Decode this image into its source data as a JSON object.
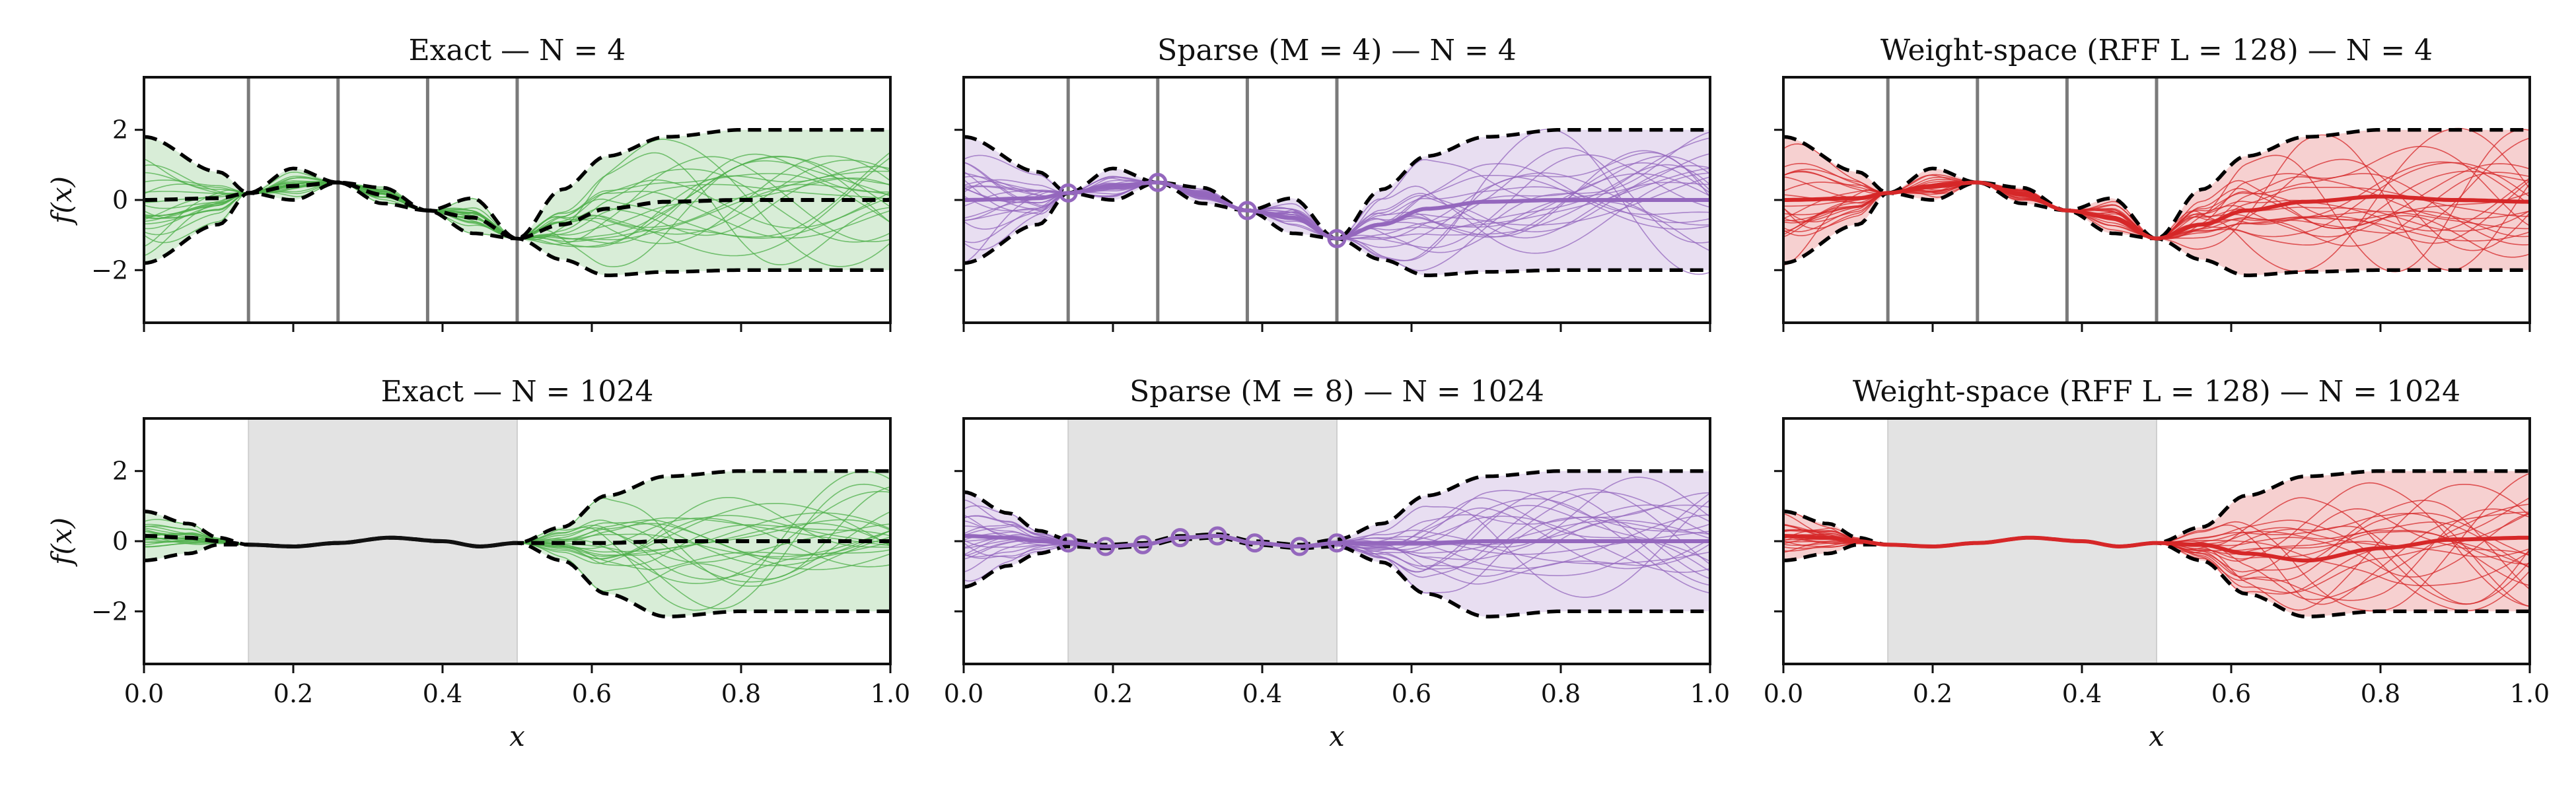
{
  "chart_data": [
    {
      "type": "line",
      "title": "Exact — N = 4",
      "xlabel": "",
      "ylabel": "f(x)",
      "xlim": [
        0,
        1
      ],
      "ylim": [
        -3.5,
        3.5
      ],
      "xticks": [
        "",
        "",
        "",
        "",
        "",
        ""
      ],
      "yticks": [
        "2",
        "0",
        "−2"
      ],
      "color": "#4daf4a",
      "mode": "points",
      "inducing_x": [],
      "observed_x": [
        0.14,
        0.26,
        0.38,
        0.5
      ],
      "observed_y": [
        0.2,
        0.5,
        -0.3,
        -1.1
      ],
      "shaded_region": null,
      "mean_style": "dashed",
      "mean_x": [
        0,
        0.1,
        0.14,
        0.2,
        0.26,
        0.32,
        0.38,
        0.44,
        0.5,
        0.56,
        0.62,
        0.7,
        0.8,
        0.9,
        1.0
      ],
      "mean_y": [
        0.0,
        0.05,
        0.2,
        0.4,
        0.5,
        0.15,
        -0.3,
        -0.5,
        -1.1,
        -0.7,
        -0.25,
        -0.05,
        0.0,
        0.0,
        0.0
      ],
      "upper_y": [
        1.8,
        0.8,
        0.2,
        0.9,
        0.5,
        0.35,
        -0.3,
        0.05,
        -1.1,
        0.3,
        1.25,
        1.8,
        2.0,
        2.0,
        2.0
      ],
      "lower_y": [
        -1.8,
        -0.7,
        0.2,
        0.0,
        0.5,
        -0.1,
        -0.3,
        -0.95,
        -1.1,
        -1.7,
        -2.15,
        -2.05,
        -2.0,
        -2.0,
        -2.0
      ]
    },
    {
      "type": "line",
      "title": "Sparse (M = 4) — N = 4",
      "xlabel": "",
      "ylabel": "",
      "xlim": [
        0,
        1
      ],
      "ylim": [
        -3.5,
        3.5
      ],
      "xticks": [
        "",
        "",
        "",
        "",
        "",
        ""
      ],
      "yticks": [
        "",
        "",
        ""
      ],
      "color": "#9467bd",
      "mode": "points",
      "inducing_x": [
        0.14,
        0.26,
        0.38,
        0.5
      ],
      "observed_x": [
        0.14,
        0.26,
        0.38,
        0.5
      ],
      "observed_y": [
        0.2,
        0.5,
        -0.3,
        -1.1
      ],
      "shaded_region": null,
      "mean_style": "solid",
      "mean_x": [
        0,
        0.1,
        0.14,
        0.2,
        0.26,
        0.32,
        0.38,
        0.44,
        0.5,
        0.56,
        0.62,
        0.7,
        0.8,
        0.9,
        1.0
      ],
      "mean_y": [
        0.0,
        0.05,
        0.2,
        0.4,
        0.5,
        0.15,
        -0.3,
        -0.5,
        -1.1,
        -0.7,
        -0.25,
        -0.05,
        0.0,
        0.0,
        0.0
      ],
      "upper_y": [
        1.8,
        0.8,
        0.2,
        0.9,
        0.5,
        0.35,
        -0.3,
        0.05,
        -1.1,
        0.3,
        1.25,
        1.8,
        2.0,
        2.0,
        2.0
      ],
      "lower_y": [
        -1.8,
        -0.7,
        0.2,
        0.0,
        0.5,
        -0.1,
        -0.3,
        -0.95,
        -1.1,
        -1.7,
        -2.15,
        -2.05,
        -2.0,
        -2.0,
        -2.0
      ]
    },
    {
      "type": "line",
      "title": "Weight-space (RFF L = 128) — N = 4",
      "xlabel": "",
      "ylabel": "",
      "xlim": [
        0,
        1
      ],
      "ylim": [
        -3.5,
        3.5
      ],
      "xticks": [
        "",
        "",
        "",
        "",
        "",
        ""
      ],
      "yticks": [
        "",
        "",
        ""
      ],
      "color": "#d62728",
      "mode": "points",
      "inducing_x": [],
      "observed_x": [
        0.14,
        0.26,
        0.38,
        0.5
      ],
      "observed_y": [
        0.2,
        0.5,
        -0.3,
        -1.1
      ],
      "shaded_region": null,
      "mean_style": "solid",
      "mean_x": [
        0,
        0.1,
        0.14,
        0.2,
        0.26,
        0.32,
        0.38,
        0.44,
        0.5,
        0.56,
        0.62,
        0.7,
        0.8,
        0.9,
        1.0
      ],
      "mean_y": [
        0.0,
        0.05,
        0.2,
        0.4,
        0.5,
        0.15,
        -0.3,
        -0.5,
        -1.1,
        -0.7,
        -0.3,
        -0.05,
        0.1,
        0.0,
        -0.05
      ],
      "upper_y": [
        1.8,
        0.8,
        0.2,
        0.9,
        0.5,
        0.35,
        -0.3,
        0.05,
        -1.1,
        0.3,
        1.25,
        1.8,
        2.0,
        2.0,
        2.0
      ],
      "lower_y": [
        -1.8,
        -0.7,
        0.2,
        0.0,
        0.5,
        -0.1,
        -0.3,
        -0.95,
        -1.1,
        -1.7,
        -2.15,
        -2.05,
        -2.0,
        -2.0,
        -2.0
      ]
    },
    {
      "type": "line",
      "title": "Exact — N = 1024",
      "xlabel": "x",
      "ylabel": "f(x)",
      "xlim": [
        0,
        1
      ],
      "ylim": [
        -3.5,
        3.5
      ],
      "xticks": [
        "0.0",
        "0.2",
        "0.4",
        "0.6",
        "0.8",
        "1.0"
      ],
      "yticks": [
        "2",
        "0",
        "−2"
      ],
      "color": "#4daf4a",
      "mode": "region",
      "inducing_x": [],
      "observed_x": [],
      "observed_y": [],
      "shaded_region": [
        0.14,
        0.5
      ],
      "mean_style": "dashed",
      "mean_x": [
        0,
        0.06,
        0.1,
        0.14,
        0.2,
        0.26,
        0.33,
        0.4,
        0.45,
        0.5,
        0.56,
        0.62,
        0.7,
        0.8,
        0.9,
        1.0
      ],
      "mean_y": [
        0.15,
        0.1,
        0.0,
        -0.1,
        -0.15,
        -0.05,
        0.1,
        0.0,
        -0.15,
        -0.05,
        -0.05,
        -0.05,
        0.0,
        0.0,
        0.0,
        0.0
      ],
      "upper_y": [
        0.85,
        0.5,
        0.1,
        -0.1,
        -0.15,
        -0.05,
        0.1,
        0.0,
        -0.15,
        -0.05,
        0.4,
        1.3,
        1.85,
        2.0,
        2.0,
        2.0
      ],
      "lower_y": [
        -0.55,
        -0.35,
        -0.1,
        -0.1,
        -0.15,
        -0.05,
        0.1,
        0.0,
        -0.15,
        -0.05,
        -0.55,
        -1.5,
        -2.15,
        -2.0,
        -2.0,
        -2.0
      ]
    },
    {
      "type": "line",
      "title": "Sparse (M = 8) — N = 1024",
      "xlabel": "x",
      "ylabel": "",
      "xlim": [
        0,
        1
      ],
      "ylim": [
        -3.5,
        3.5
      ],
      "xticks": [
        "0.0",
        "0.2",
        "0.4",
        "0.6",
        "0.8",
        "1.0"
      ],
      "yticks": [
        "",
        "",
        ""
      ],
      "color": "#9467bd",
      "mode": "region",
      "inducing_x": [
        0.14,
        0.19,
        0.24,
        0.29,
        0.34,
        0.39,
        0.45,
        0.5
      ],
      "observed_x": [],
      "observed_y": [],
      "shaded_region": [
        0.14,
        0.5
      ],
      "mean_style": "solid",
      "mean_x": [
        0,
        0.06,
        0.1,
        0.14,
        0.19,
        0.24,
        0.29,
        0.34,
        0.39,
        0.45,
        0.5,
        0.56,
        0.62,
        0.7,
        0.8,
        0.9,
        1.0
      ],
      "mean_y": [
        0.15,
        0.1,
        0.0,
        -0.05,
        -0.15,
        -0.1,
        0.1,
        0.15,
        -0.05,
        -0.15,
        -0.05,
        -0.05,
        -0.05,
        0.0,
        0.0,
        0.0,
        0.0
      ],
      "upper_y": [
        1.4,
        0.8,
        0.3,
        0.05,
        -0.1,
        -0.05,
        0.15,
        0.2,
        0.0,
        -0.1,
        0.05,
        0.5,
        1.3,
        1.85,
        2.0,
        2.0,
        2.0
      ],
      "lower_y": [
        -1.3,
        -0.7,
        -0.35,
        -0.15,
        -0.2,
        -0.15,
        0.05,
        0.1,
        -0.1,
        -0.2,
        -0.15,
        -0.6,
        -1.5,
        -2.15,
        -2.0,
        -2.0,
        -2.0
      ]
    },
    {
      "type": "line",
      "title": "Weight-space (RFF L = 128) — N = 1024",
      "xlabel": "x",
      "ylabel": "",
      "xlim": [
        0,
        1
      ],
      "ylim": [
        -3.5,
        3.5
      ],
      "xticks": [
        "0.0",
        "0.2",
        "0.4",
        "0.6",
        "0.8",
        "1.0"
      ],
      "yticks": [
        "",
        "",
        ""
      ],
      "color": "#d62728",
      "mode": "region",
      "inducing_x": [],
      "observed_x": [],
      "observed_y": [],
      "shaded_region": [
        0.14,
        0.5
      ],
      "mean_style": "solid",
      "mean_x": [
        0,
        0.06,
        0.1,
        0.14,
        0.2,
        0.26,
        0.33,
        0.4,
        0.45,
        0.5,
        0.56,
        0.62,
        0.7,
        0.8,
        0.9,
        1.0
      ],
      "mean_y": [
        0.15,
        0.1,
        0.0,
        -0.1,
        -0.15,
        -0.05,
        0.1,
        0.0,
        -0.15,
        -0.05,
        -0.1,
        -0.35,
        -0.55,
        -0.2,
        0.05,
        0.1
      ],
      "upper_y": [
        0.85,
        0.5,
        0.1,
        -0.1,
        -0.15,
        -0.05,
        0.1,
        0.0,
        -0.15,
        -0.05,
        0.4,
        1.3,
        1.85,
        2.0,
        2.0,
        2.0
      ],
      "lower_y": [
        -0.55,
        -0.35,
        -0.1,
        -0.1,
        -0.15,
        -0.05,
        0.1,
        0.0,
        -0.15,
        -0.05,
        -0.55,
        -1.5,
        -2.15,
        -2.0,
        -2.0,
        -2.0
      ]
    }
  ]
}
